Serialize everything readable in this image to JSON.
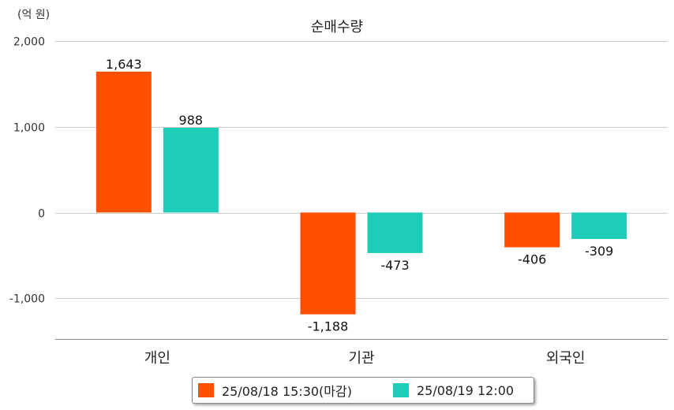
{
  "header": {
    "unit_label": "(억 원)",
    "title": "순매수량"
  },
  "colors": {
    "series_1": "#ff5000",
    "series_2": "#1ecdb9",
    "grid": "#cccccc",
    "axis": "#888888"
  },
  "legend": {
    "items": [
      {
        "label": "25/08/18 15:30(마감)"
      },
      {
        "label": "25/08/19 12:00"
      }
    ]
  },
  "chart_data": {
    "type": "bar",
    "title": "순매수량",
    "unit": "(억 원)",
    "categories": [
      "개인",
      "기관",
      "외국인"
    ],
    "series": [
      {
        "name": "25/08/18 15:30(마감)",
        "values": [
          1643,
          -1188,
          -406
        ],
        "labels": [
          "1,643",
          "-1,188",
          "-406"
        ]
      },
      {
        "name": "25/08/19 12:00",
        "values": [
          988,
          -473,
          -309
        ],
        "labels": [
          "988",
          "-473",
          "-309"
        ]
      }
    ],
    "y_ticks": [
      {
        "value": 2000,
        "label": "2,000"
      },
      {
        "value": 1000,
        "label": "1,000"
      },
      {
        "value": 0,
        "label": "0"
      },
      {
        "value": -1000,
        "label": "-1,000"
      }
    ],
    "ylim": [
      -1480,
      2000
    ],
    "grid": true,
    "legend_position": "bottom"
  }
}
